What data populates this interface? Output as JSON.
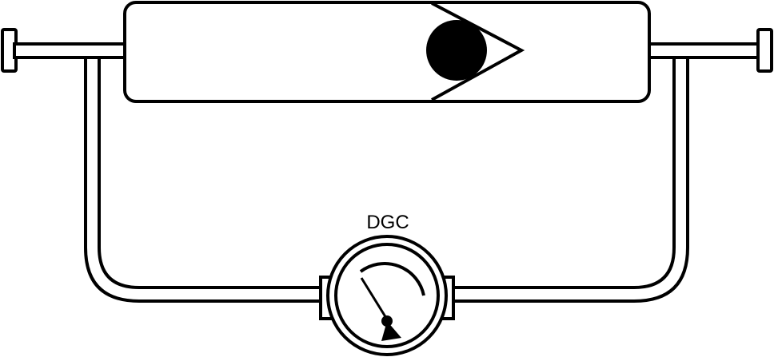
{
  "diagram": {
    "gauge_label": "DGC"
  },
  "colors": {
    "stroke": "#000000",
    "fill": "#ffffff",
    "ball": "#000000"
  },
  "icons": {
    "valve": "check-valve-icon",
    "gauge": "pressure-gauge-icon"
  }
}
